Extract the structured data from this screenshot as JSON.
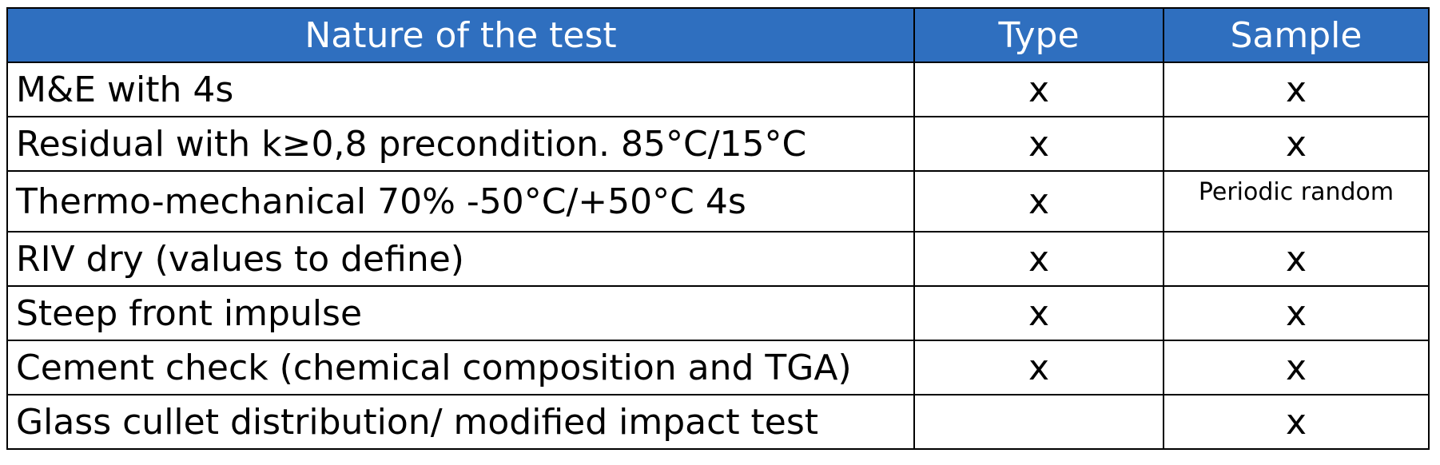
{
  "table": {
    "header": [
      "Nature of the test",
      "Type",
      "Sample"
    ],
    "rows": [
      [
        "M&E with 4s",
        "x",
        "x"
      ],
      [
        "Residual with k≥0,8 precondition. 85°C/15°C",
        "x",
        "x"
      ],
      [
        "Thermo-mechanical 70% -50°C/+50°C 4s",
        "x",
        "Periodic random"
      ],
      [
        "RIV dry (values to define)",
        "x",
        "x"
      ],
      [
        "Steep front impulse",
        "x",
        "x"
      ],
      [
        "Cement check (chemical composition and TGA)",
        "x",
        "x"
      ],
      [
        "Glass cullet distribution/ modified impact test",
        null,
        "x"
      ]
    ]
  }
}
